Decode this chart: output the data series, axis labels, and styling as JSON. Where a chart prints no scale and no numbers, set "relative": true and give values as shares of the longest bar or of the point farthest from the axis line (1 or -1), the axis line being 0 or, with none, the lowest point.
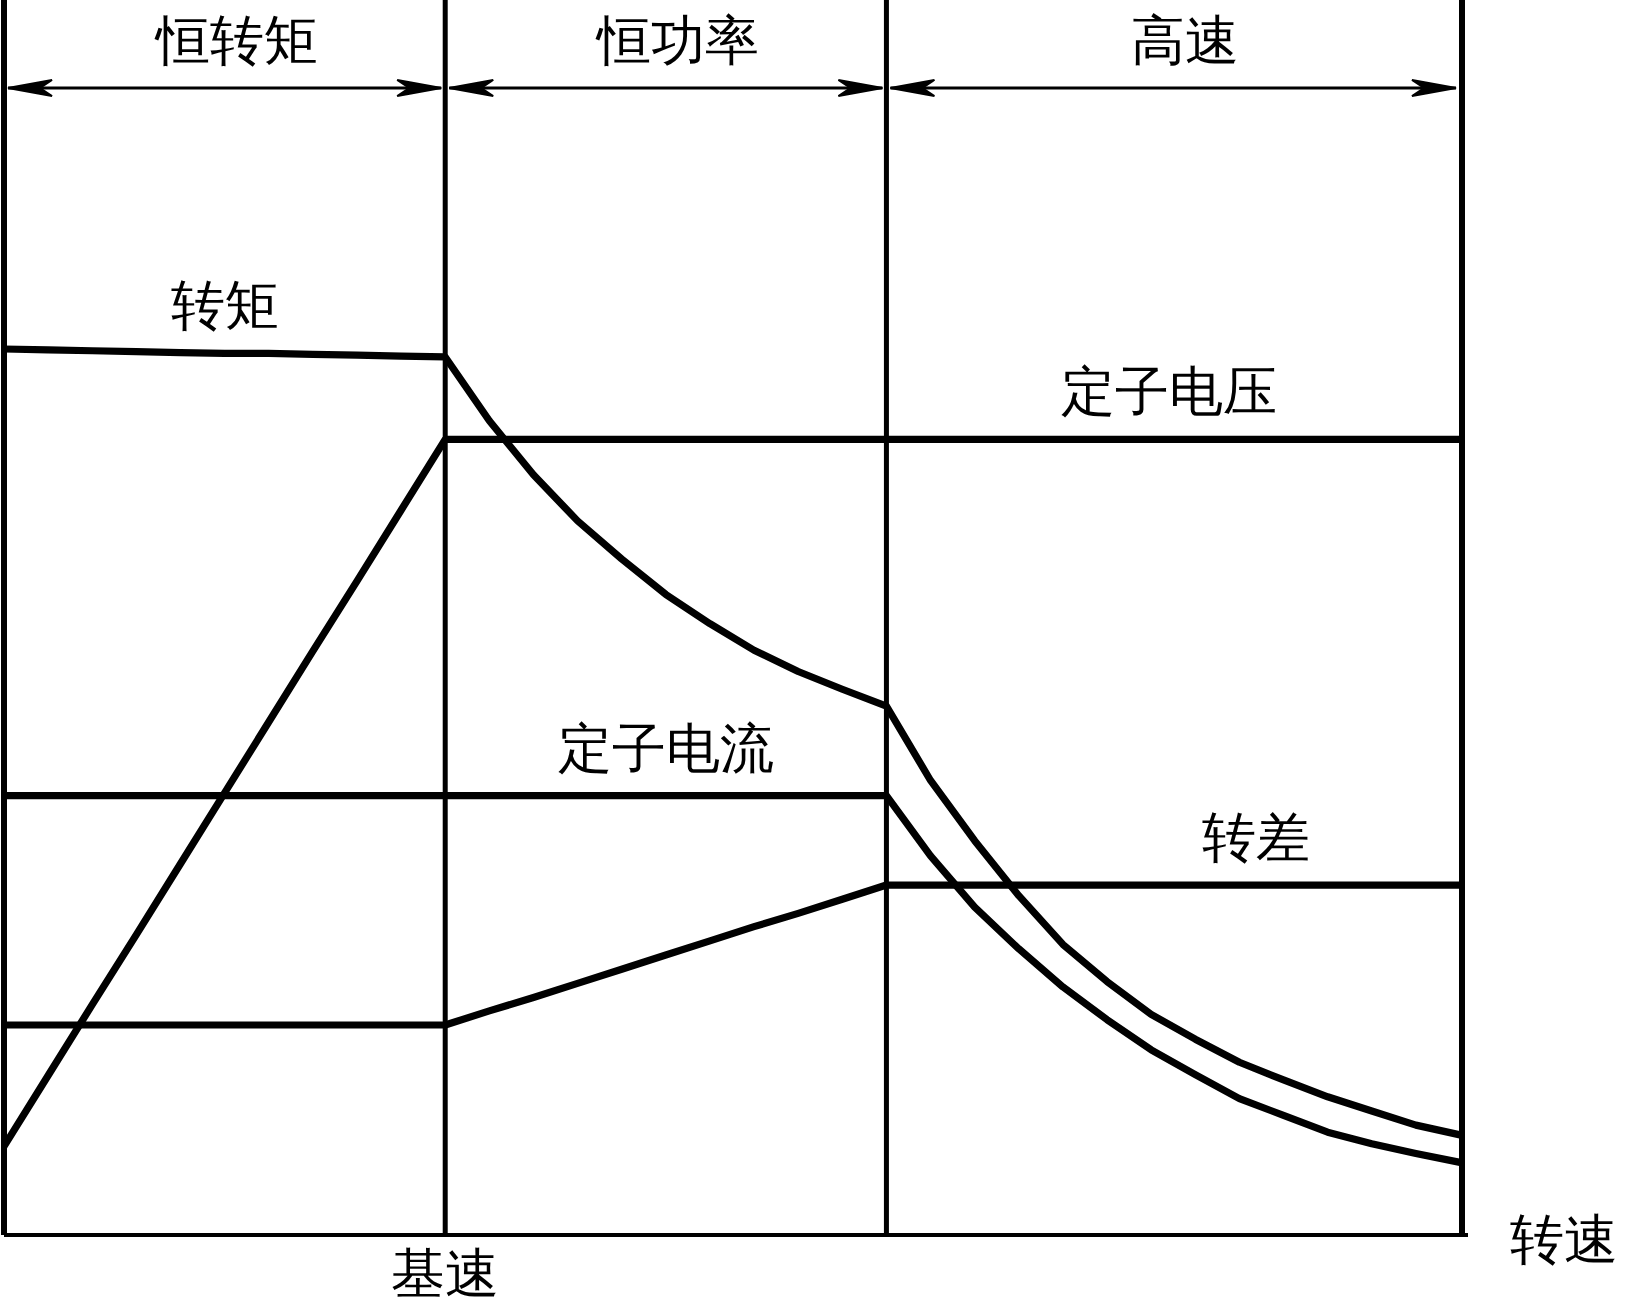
{
  "chart_data": {
    "type": "line",
    "relative": true,
    "xlabel": "转速",
    "line_style": "solid",
    "categories": [
      null,
      null,
      null,
      null,
      null,
      null,
      null,
      null,
      null,
      null,
      null,
      null,
      null,
      null,
      null,
      null,
      null,
      null,
      null,
      null,
      null,
      null,
      null,
      null,
      null,
      null,
      null,
      null,
      null,
      null,
      null,
      null,
      null,
      null
    ],
    "series": [
      {
        "name": "转矩",
        "color": "#000000",
        "values": [
          1.0,
          0.999,
          0.998,
          0.997,
          0.996,
          0.995,
          0.995,
          0.994,
          0.993,
          0.992,
          0.991,
          0.919,
          0.858,
          0.806,
          0.763,
          0.723,
          0.69,
          0.66,
          0.636,
          0.616,
          0.597,
          0.513,
          0.445,
          0.383,
          0.328,
          0.286,
          0.249,
          0.221,
          0.195,
          0.175,
          0.156,
          0.14,
          0.124,
          0.113
        ]
      },
      {
        "name": "定子电压",
        "color": "#000000",
        "values": [
          0.1,
          0.18,
          0.26,
          0.339,
          0.419,
          0.499,
          0.579,
          0.659,
          0.738,
          0.818,
          0.898,
          0.898,
          0.898,
          0.898,
          0.898,
          0.898,
          0.898,
          0.898,
          0.898,
          0.898,
          0.898,
          0.898,
          0.898,
          0.898,
          0.898,
          0.898,
          0.898,
          0.898,
          0.898,
          0.898,
          0.898,
          0.898,
          0.898,
          0.898
        ]
      },
      {
        "name": "定子电流",
        "color": "#000000",
        "values": [
          0.496,
          0.496,
          0.496,
          0.496,
          0.496,
          0.496,
          0.496,
          0.496,
          0.496,
          0.496,
          0.496,
          0.496,
          0.496,
          0.496,
          0.496,
          0.496,
          0.496,
          0.496,
          0.496,
          0.496,
          0.496,
          0.428,
          0.37,
          0.323,
          0.28,
          0.243,
          0.209,
          0.181,
          0.154,
          0.135,
          0.116,
          0.103,
          0.092,
          0.082
        ]
      },
      {
        "name": "转差",
        "color": "#000000",
        "values": [
          0.237,
          0.237,
          0.237,
          0.237,
          0.237,
          0.237,
          0.237,
          0.237,
          0.237,
          0.237,
          0.237,
          0.253,
          0.268,
          0.284,
          0.3,
          0.316,
          0.332,
          0.348,
          0.363,
          0.379,
          0.395,
          0.395,
          0.395,
          0.395,
          0.395,
          0.395,
          0.395,
          0.395,
          0.395,
          0.395,
          0.395,
          0.395,
          0.395,
          0.395
        ]
      }
    ],
    "annotations": [
      "恒转矩",
      "恒功率",
      "高速",
      "基速"
    ]
  }
}
